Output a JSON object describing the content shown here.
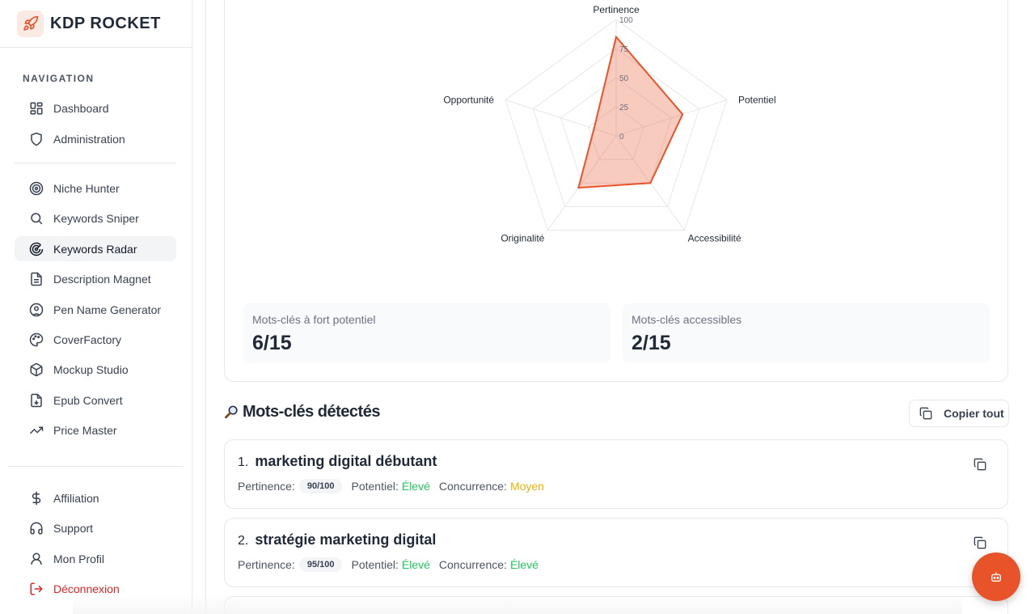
{
  "brand": {
    "name": "KDP ROCKET",
    "logo_icon": "rocket-icon",
    "accent": "#e8532a"
  },
  "sidebar": {
    "heading": "NAVIGATION",
    "items": [
      {
        "label": "Dashboard",
        "icon": "dashboard-icon"
      },
      {
        "label": "Administration",
        "icon": "shield-icon"
      },
      {
        "label": "Niche Hunter",
        "icon": "target-icon"
      },
      {
        "label": "Keywords Sniper",
        "icon": "search-icon"
      },
      {
        "label": "Keywords Radar",
        "icon": "radar-icon",
        "active": true
      },
      {
        "label": "Description Magnet",
        "icon": "document-icon"
      },
      {
        "label": "Pen Name Generator",
        "icon": "user-circle-icon"
      },
      {
        "label": "CoverFactory",
        "icon": "palette-icon"
      },
      {
        "label": "Mockup Studio",
        "icon": "box-icon"
      },
      {
        "label": "Epub Convert",
        "icon": "file-download-icon"
      },
      {
        "label": "Price Master",
        "icon": "trending-up-icon"
      }
    ],
    "bottom_items": [
      {
        "label": "Affiliation",
        "icon": "dollar-icon"
      },
      {
        "label": "Support",
        "icon": "headset-icon"
      },
      {
        "label": "Mon Profil",
        "icon": "user-icon"
      },
      {
        "label": "Déconnexion",
        "icon": "logout-icon"
      }
    ]
  },
  "radar": {
    "axes": [
      "Pertinence",
      "Potentiel",
      "Accessibilité",
      "Originalité",
      "Opportunité"
    ],
    "ticks": [
      "0",
      "25",
      "50",
      "75",
      "100"
    ],
    "values": [
      85,
      60,
      50,
      55,
      20
    ],
    "max": 100,
    "color": "#e8532a"
  },
  "stats": [
    {
      "label": "Mots-clés à fort potentiel",
      "value": "6/15"
    },
    {
      "label": "Mots-clés accessibles",
      "value": "2/15"
    }
  ],
  "keywords_section": {
    "icon": "magnifier-icon",
    "title": "Mots-clés détectés",
    "copy_all_label": "Copier tout"
  },
  "keywords": [
    {
      "index": "1.",
      "text": "marketing digital débutant",
      "pertinence_label": "Pertinence:",
      "pertinence_value": "90/100",
      "potentiel_label": "Potentiel:",
      "potentiel_value": "Élevé",
      "concurrence_label": "Concurrence:",
      "concurrence_value": "Moyen"
    },
    {
      "index": "2.",
      "text": "stratégie marketing digital",
      "pertinence_label": "Pertinence:",
      "pertinence_value": "95/100",
      "potentiel_label": "Potentiel:",
      "potentiel_value": "Élevé",
      "concurrence_label": "Concurrence:",
      "concurrence_value": "Élevé"
    }
  ],
  "fab": {
    "icon": "robot-icon"
  }
}
